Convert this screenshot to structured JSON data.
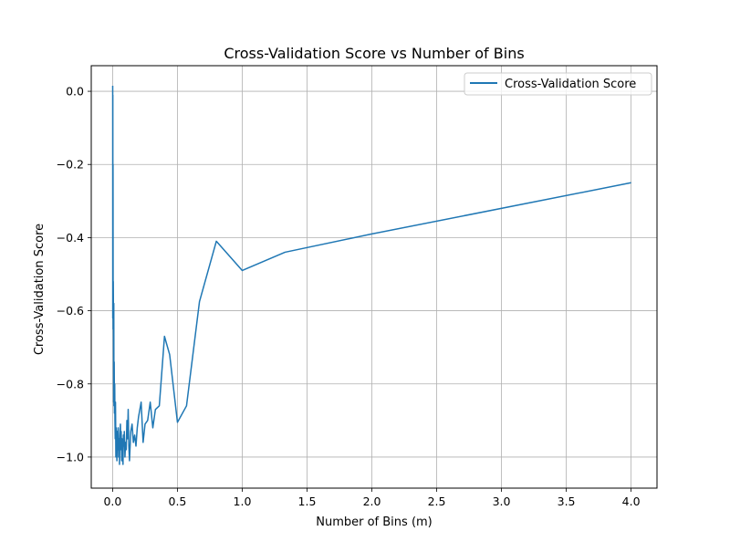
{
  "chart_data": {
    "type": "line",
    "title": "Cross-Validation Score vs Number of Bins",
    "xlabel": "Number of Bins (m)",
    "ylabel": "Cross-Validation Score",
    "xlim": [
      -0.165,
      4.2
    ],
    "ylim": [
      -1.085,
      0.07
    ],
    "grid": true,
    "legend": {
      "placement": "top-right",
      "entries": [
        "Cross-Validation Score"
      ]
    },
    "x_ticks": [
      0.0,
      0.5,
      1.0,
      1.5,
      2.0,
      2.5,
      3.0,
      3.5,
      4.0
    ],
    "x_tick_labels": [
      "0.0",
      "0.5",
      "1.0",
      "1.5",
      "2.0",
      "2.5",
      "3.0",
      "3.5",
      "4.0"
    ],
    "y_ticks": [
      0.0,
      -0.2,
      -0.4,
      -0.6,
      -0.8,
      -1.0
    ],
    "y_tick_labels": [
      "0.0",
      "−0.2",
      "−0.4",
      "−0.6",
      "−0.8",
      "−1.0"
    ],
    "series": [
      {
        "name": "Cross-Validation Score",
        "color": "#1f77b4",
        "x": [
          0.0005,
          0.001,
          0.0015,
          0.002,
          0.003,
          0.004,
          0.005,
          0.006,
          0.007,
          0.008,
          0.009,
          0.01,
          0.012,
          0.014,
          0.016,
          0.018,
          0.02,
          0.022,
          0.025,
          0.028,
          0.03,
          0.033,
          0.036,
          0.04,
          0.043,
          0.046,
          0.05,
          0.053,
          0.056,
          0.06,
          0.063,
          0.066,
          0.07,
          0.073,
          0.076,
          0.08,
          0.083,
          0.086,
          0.09,
          0.095,
          0.1,
          0.105,
          0.11,
          0.115,
          0.12,
          0.125,
          0.13,
          0.14,
          0.15,
          0.16,
          0.17,
          0.18,
          0.19,
          0.2,
          0.22,
          0.235,
          0.25,
          0.27,
          0.29,
          0.31,
          0.33,
          0.36,
          0.4,
          0.44,
          0.5,
          0.57,
          0.67,
          0.8,
          1.0,
          1.33,
          2.0,
          4.0
        ],
        "values": [
          0.015,
          -0.62,
          -0.01,
          -0.55,
          -0.2,
          -0.65,
          -0.52,
          -0.6,
          -0.72,
          -0.85,
          -0.58,
          -0.86,
          -0.74,
          -0.88,
          -0.8,
          -0.9,
          -0.95,
          -0.85,
          -1.0,
          -0.92,
          -0.95,
          -1.01,
          -0.93,
          -0.98,
          -0.92,
          -1.0,
          -0.95,
          -1.02,
          -0.94,
          -0.91,
          -0.98,
          -0.93,
          -1.01,
          -0.95,
          -0.99,
          -1.02,
          -0.94,
          -0.97,
          -0.93,
          -1.0,
          -0.96,
          -0.98,
          -0.9,
          -0.95,
          -0.87,
          -0.97,
          -1.01,
          -0.93,
          -0.91,
          -0.96,
          -0.94,
          -0.97,
          -0.92,
          -0.89,
          -0.85,
          -0.96,
          -0.91,
          -0.9,
          -0.85,
          -0.92,
          -0.87,
          -0.86,
          -0.67,
          -0.72,
          -0.905,
          -0.86,
          -0.575,
          -0.41,
          -0.49,
          -0.44,
          -0.39,
          -0.25
        ]
      }
    ]
  }
}
